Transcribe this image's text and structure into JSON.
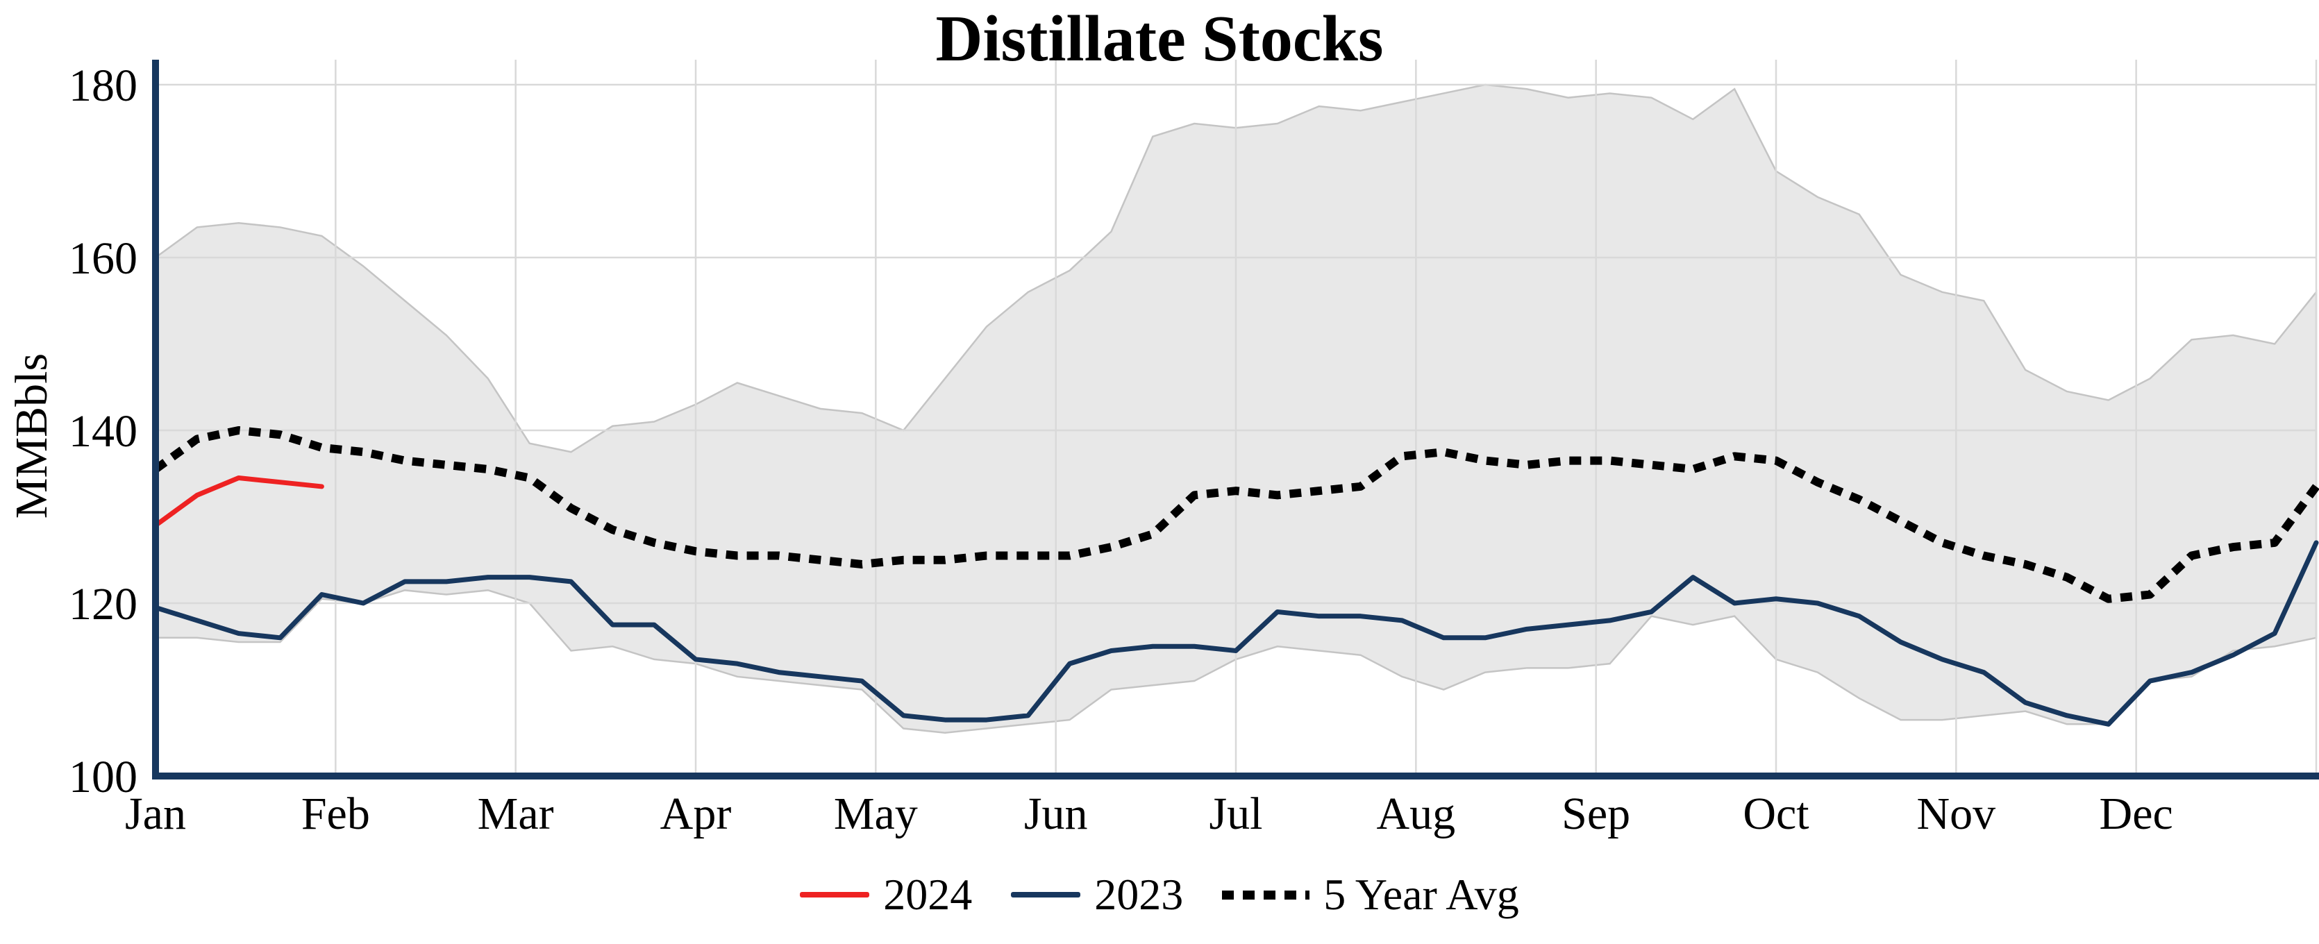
{
  "title": "Distillate Stocks",
  "y_axis_label": "MMBbls",
  "legend": {
    "items": [
      {
        "label": "2024",
        "color": "#ee2222",
        "style": "solid"
      },
      {
        "label": "2023",
        "color": "#17375e",
        "style": "solid"
      },
      {
        "label": "5 Year Avg",
        "color": "#000000",
        "style": "dotted"
      }
    ]
  },
  "chart_data": {
    "type": "line",
    "title": "Distillate Stocks",
    "xlabel": "",
    "ylabel": "MMBbls",
    "ylim": [
      100,
      180
    ],
    "yticks": [
      100,
      120,
      140,
      160,
      180
    ],
    "x_months": [
      "Jan",
      "Feb",
      "Mar",
      "Apr",
      "May",
      "Jun",
      "Jul",
      "Aug",
      "Sep",
      "Oct",
      "Nov",
      "Dec"
    ],
    "x_note": "weekly data, array index = week 0-52 spanning Jan through year end",
    "grid": true,
    "legend_position": "bottom",
    "axis_color": "#17375e",
    "gridline_color": "#d9d9d9",
    "band": {
      "name": "5 Year Range",
      "fill": "#e8e8e8",
      "edge": "#c4c4c4",
      "upper": [
        160,
        163.5,
        164,
        163.5,
        162.5,
        159,
        155,
        151,
        146,
        138.5,
        137.5,
        140.5,
        141,
        143,
        145.5,
        144,
        142.5,
        142,
        140,
        146,
        152,
        156,
        158.5,
        163,
        174,
        175.5,
        175,
        175.5,
        177.5,
        177,
        178,
        179,
        180,
        179.5,
        178.5,
        179,
        178.5,
        176,
        179.5,
        170,
        167,
        165,
        158,
        156,
        155,
        147,
        144.5,
        143.5,
        146,
        150.5,
        151,
        150,
        156
      ],
      "lower": [
        116,
        116,
        115.5,
        115.5,
        120.5,
        120,
        121.5,
        121,
        121.5,
        120,
        114.5,
        115,
        113.5,
        113,
        111.5,
        111,
        110.5,
        110,
        105.5,
        105,
        105.5,
        106,
        106.5,
        110,
        110.5,
        111,
        113.5,
        115,
        114.5,
        114,
        111.5,
        110,
        112,
        112.5,
        112.5,
        113,
        118.5,
        117.5,
        118.5,
        113.5,
        112,
        109,
        106.5,
        106.5,
        107,
        107.5,
        106,
        106,
        111,
        111.5,
        114.5,
        115,
        116
      ]
    },
    "series": [
      {
        "name": "5 Year Avg",
        "style": "dotted",
        "color": "#000000",
        "values": [
          135.5,
          139,
          140,
          139.5,
          138,
          137.5,
          136.5,
          136,
          135.5,
          134.5,
          131,
          128.5,
          127,
          126,
          125.5,
          125.5,
          125,
          124.5,
          125,
          125,
          125.5,
          125.5,
          125.5,
          126.5,
          128,
          132.5,
          133,
          132.5,
          133,
          133.5,
          137,
          137.5,
          136.5,
          136,
          136.5,
          136.5,
          136,
          135.5,
          137,
          136.5,
          134,
          132,
          129.5,
          127,
          125.5,
          124.5,
          123,
          120.5,
          121,
          125.5,
          126.5,
          127,
          133.5
        ]
      },
      {
        "name": "2023",
        "style": "solid",
        "color": "#17375e",
        "values": [
          119.5,
          118,
          116.5,
          116,
          121,
          120,
          122.5,
          122.5,
          123,
          123,
          122.5,
          117.5,
          117.5,
          113.5,
          113,
          112,
          111.5,
          111,
          107,
          106.5,
          106.5,
          107,
          113,
          114.5,
          115,
          115,
          114.5,
          119,
          118.5,
          118.5,
          118,
          116,
          116,
          117,
          117.5,
          118,
          119,
          123,
          120,
          120.5,
          120,
          118.5,
          115.5,
          113.5,
          112,
          108.5,
          107,
          106,
          111,
          112,
          114,
          116.5,
          127
        ]
      },
      {
        "name": "2024",
        "style": "solid",
        "color": "#ee2222",
        "x": [
          0,
          1,
          2,
          3,
          4
        ],
        "values": [
          129,
          132.5,
          134.5,
          134,
          133.5
        ]
      }
    ]
  }
}
